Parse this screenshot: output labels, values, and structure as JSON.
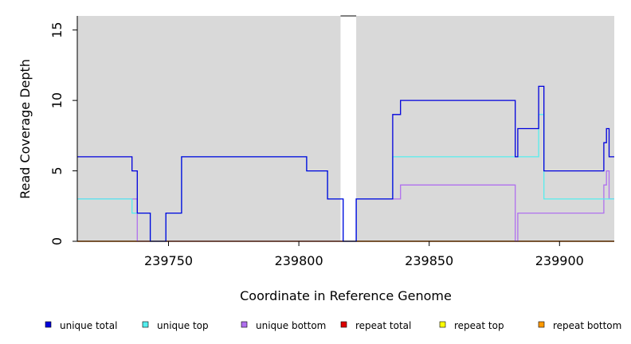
{
  "chart_data": {
    "type": "line",
    "xlabel": "Coordinate in Reference Genome",
    "ylabel": "Read Coverage Depth",
    "xlim": [
      239715,
      239921
    ],
    "ylim": [
      0,
      16
    ],
    "xticks": [
      239750,
      239800,
      239850,
      239900
    ],
    "yticks": [
      0,
      5,
      10,
      15
    ],
    "background": "#d9d9d9",
    "gaps": [
      [
        239816,
        239822
      ]
    ],
    "legend_position": "bottom",
    "series": [
      {
        "name": "unique total",
        "color": "#0000dd",
        "x": [
          239715,
          239736,
          239738,
          239743,
          239749,
          239755,
          239803,
          239811,
          239817,
          239822,
          239836,
          239839,
          239883,
          239884,
          239885,
          239892,
          239894,
          239917,
          239918,
          239919,
          239920,
          239921
        ],
        "y": [
          6,
          5,
          2,
          0,
          2,
          6,
          5,
          3,
          0,
          3,
          9,
          10,
          6,
          8,
          8,
          11,
          5,
          7,
          8,
          6,
          6,
          6
        ]
      },
      {
        "name": "unique top",
        "color": "#55eeee",
        "x": [
          239715,
          239736,
          239743,
          239749,
          239755,
          239803,
          239811,
          239817,
          239822,
          239836,
          239883,
          239892,
          239894,
          239921
        ],
        "y": [
          3,
          2,
          0,
          2,
          6,
          5,
          3,
          0,
          3,
          6,
          6,
          9,
          3,
          3
        ]
      },
      {
        "name": "unique bottom",
        "color": "#b070ee",
        "x": [
          239715,
          239738,
          239822,
          239836,
          239839,
          239883,
          239884,
          239917,
          239918,
          239919,
          239920,
          239921
        ],
        "y": [
          3,
          0,
          3,
          3,
          4,
          0,
          2,
          4,
          5,
          3,
          3,
          3
        ]
      },
      {
        "name": "repeat total",
        "color": "#dd0000",
        "x": [
          239715,
          239921
        ],
        "y": [
          0,
          0
        ]
      },
      {
        "name": "repeat top",
        "color": "#ffff00",
        "x": [
          239715,
          239921
        ],
        "y": [
          0,
          0
        ]
      },
      {
        "name": "repeat bottom",
        "color": "#ff9900",
        "x": [
          239715,
          239921
        ],
        "y": [
          0,
          0
        ]
      }
    ]
  }
}
